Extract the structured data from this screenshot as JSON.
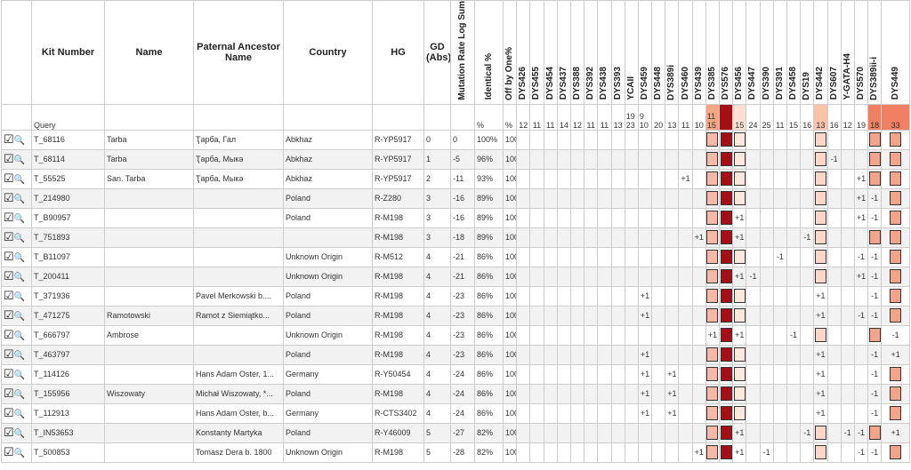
{
  "table": {
    "columns": [
      "Kit Number",
      "Name",
      "Paternal Ancestor Name",
      "Country",
      "HG",
      "GD (Abs)",
      "Mutation Rate Log Sum",
      "Identical %",
      "Off by One%"
    ],
    "markers": [
      "DYS426",
      "DYS455",
      "DYS454",
      "DYS437",
      "DYS388",
      "DYS392",
      "DYS438",
      "DYS393",
      "YCAII",
      "DYS459",
      "DYS448",
      "DYS389i",
      "DYS460",
      "DYS439",
      "DYS385",
      "DYS576",
      "DYS456",
      "DYS447",
      "DYS390",
      "DYS391",
      "DYS458",
      "DYS19",
      "DYS442",
      "DYS607",
      "Y-GATA-H4",
      "DYS570",
      "DYS389ii-i",
      "DYS449"
    ],
    "query": {
      "label": "Query",
      "ident": "%",
      "off": "%",
      "values": [
        12,
        11,
        11,
        14,
        12,
        11,
        11,
        13,
        [
          19,
          23
        ],
        [
          9,
          10
        ],
        20,
        13,
        11,
        10,
        [
          11,
          15
        ],
        null,
        15,
        24,
        25,
        11,
        15,
        16,
        13,
        16,
        12,
        19,
        18,
        33
      ]
    },
    "rows": [
      {
        "kit": "T_68116",
        "name": "Tarba",
        "ancestor": "Ҭарба, Гал",
        "country": "Abkhaz",
        "hg": "R-YP5917",
        "gd": 0,
        "mut": 0,
        "ident": "100%",
        "off": "100%",
        "diffs": {}
      },
      {
        "kit": "T_68114",
        "name": "Tarba",
        "ancestor": "Ҭарба, Мыкә",
        "country": "Abkhaz",
        "hg": "R-YP5917",
        "gd": 1,
        "mut": -5,
        "ident": "96%",
        "off": "100%",
        "diffs": {
          "23": "-1"
        }
      },
      {
        "kit": "T_55525",
        "name": "San. Tarba",
        "ancestor": "Ҭарба, Мыкә",
        "country": "Abkhaz",
        "hg": "R-YP5917",
        "gd": 2,
        "mut": -11,
        "ident": "93%",
        "off": "100%",
        "diffs": {
          "12": "+1",
          "25": "+1"
        }
      },
      {
        "kit": "T_214980",
        "country": "Poland",
        "hg": "R-Z280",
        "gd": 3,
        "mut": -16,
        "ident": "89%",
        "off": "100%",
        "diffs": {
          "25": "+1",
          "26": "-1"
        }
      },
      {
        "kit": "T_B90957",
        "country": "Poland",
        "hg": "R-M198",
        "gd": 3,
        "mut": -16,
        "ident": "89%",
        "off": "100%",
        "diffs": {
          "16": "+1",
          "25": "+1",
          "26": "-1"
        }
      },
      {
        "kit": "T_751893",
        "hg": "R-M198",
        "gd": 3,
        "mut": -18,
        "ident": "89%",
        "off": "100%",
        "diffs": {
          "13": "+1",
          "16": "+1",
          "21": "-1"
        }
      },
      {
        "kit": "T_B11097",
        "country": "Unknown Origin",
        "hg": "R-M512",
        "gd": 4,
        "mut": -21,
        "ident": "86%",
        "off": "100%",
        "diffs": {
          "19": "-1",
          "25": "-1",
          "26": "-1"
        }
      },
      {
        "kit": "T_200411",
        "country": "Unknown Origin",
        "hg": "R-M198",
        "gd": 4,
        "mut": -21,
        "ident": "86%",
        "off": "100%",
        "diffs": {
          "16": "+1",
          "17": "-1",
          "25": "+1",
          "26": "-1"
        }
      },
      {
        "kit": "T_371936",
        "ancestor": "Pavel Merkowski b....",
        "country": "Poland",
        "hg": "R-M198",
        "gd": 4,
        "mut": -23,
        "ident": "86%",
        "off": "100%",
        "diffs": {
          "9": "+1",
          "22": "+1",
          "26": "-1"
        }
      },
      {
        "kit": "T_471275",
        "name": "Ramotowski",
        "ancestor": "Ramot z Siemiątko...",
        "country": "Poland",
        "hg": "R-M198",
        "gd": 4,
        "mut": -23,
        "ident": "86%",
        "off": "100%",
        "diffs": {
          "9": "+1",
          "22": "+1",
          "25": "-1",
          "26": "-1"
        }
      },
      {
        "kit": "T_666797",
        "name": "Ambrose",
        "country": "Unknown Origin",
        "hg": "R-M198",
        "gd": 4,
        "mut": -23,
        "ident": "86%",
        "off": "100%",
        "diffs": {
          "14": "+1",
          "16": "+1",
          "20": "-1",
          "27": "-1"
        }
      },
      {
        "kit": "T_463797",
        "country": "Poland",
        "hg": "R-M198",
        "gd": 4,
        "mut": -23,
        "ident": "86%",
        "off": "100%",
        "diffs": {
          "9": "+1",
          "22": "+1",
          "26": "-1",
          "27": "+1"
        }
      },
      {
        "kit": "T_114126",
        "ancestor": "Hans Adam Oster, 1...",
        "country": "Germany",
        "hg": "R-Y50454",
        "gd": 4,
        "mut": -24,
        "ident": "86%",
        "off": "100%",
        "diffs": {
          "9": "+1",
          "11": "+1",
          "22": "+1",
          "26": "-1"
        }
      },
      {
        "kit": "T_155956",
        "name": "Wiszowaty",
        "ancestor": "Michał Wiszowaty, *...",
        "country": "Poland",
        "hg": "R-M198",
        "gd": 4,
        "mut": -24,
        "ident": "86%",
        "off": "100%",
        "diffs": {
          "9": "+1",
          "11": "+1",
          "22": "+1",
          "26": "-1"
        }
      },
      {
        "kit": "T_112913",
        "ancestor": "Hans Adam Oster, b...",
        "country": "Germany",
        "hg": "R-CTS3402",
        "gd": 4,
        "mut": -24,
        "ident": "86%",
        "off": "100%",
        "diffs": {
          "9": "+1",
          "11": "+1",
          "22": "+1",
          "26": "-1"
        }
      },
      {
        "kit": "T_IN53653",
        "ancestor": "Konstanty Martyka",
        "country": "Poland",
        "hg": "R-Y46009",
        "gd": 5,
        "mut": -27,
        "ident": "82%",
        "off": "100%",
        "diffs": {
          "16": "+1",
          "21": "-1",
          "24": "-1",
          "25": "-1",
          "27": "+1"
        }
      },
      {
        "kit": "T_500853",
        "ancestor": "Tomasz Dera b. 1800",
        "country": "Unknown Origin",
        "hg": "R-M198",
        "gd": 5,
        "mut": -28,
        "ident": "82%",
        "off": "100%",
        "diffs": {
          "13": "+1",
          "16": "+1",
          "18": "-1",
          "25": "-1",
          "26": "-1"
        }
      }
    ]
  }
}
